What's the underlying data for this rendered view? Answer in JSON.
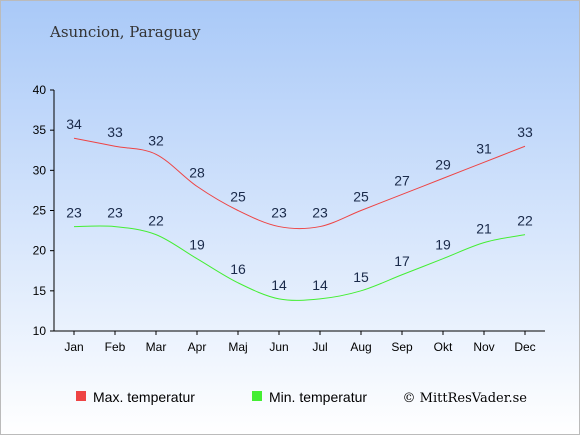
{
  "title": "Asuncion, Paraguay",
  "credit": "© MittResVader.se",
  "colors": {
    "bg_top": "#a9c9f8",
    "bg_bottom": "#ffffff",
    "max_line": "#ee4444",
    "min_line": "#44ee33"
  },
  "chart_data": {
    "type": "line",
    "categories": [
      "Jan",
      "Feb",
      "Mar",
      "Apr",
      "Maj",
      "Jun",
      "Jul",
      "Aug",
      "Sep",
      "Okt",
      "Nov",
      "Dec"
    ],
    "ylim": [
      10,
      40
    ],
    "yticks": [
      10,
      15,
      20,
      25,
      30,
      35,
      40
    ],
    "grid": false,
    "legend_position": "bottom-left",
    "series": [
      {
        "name": "Max. temperatur",
        "color": "#ee4444",
        "values": [
          34,
          33,
          32,
          28,
          25,
          23,
          23,
          25,
          27,
          29,
          31,
          33
        ]
      },
      {
        "name": "Min. temperatur",
        "color": "#44ee33",
        "values": [
          23,
          23,
          22,
          19,
          16,
          14,
          14,
          15,
          17,
          19,
          21,
          22
        ]
      }
    ]
  }
}
